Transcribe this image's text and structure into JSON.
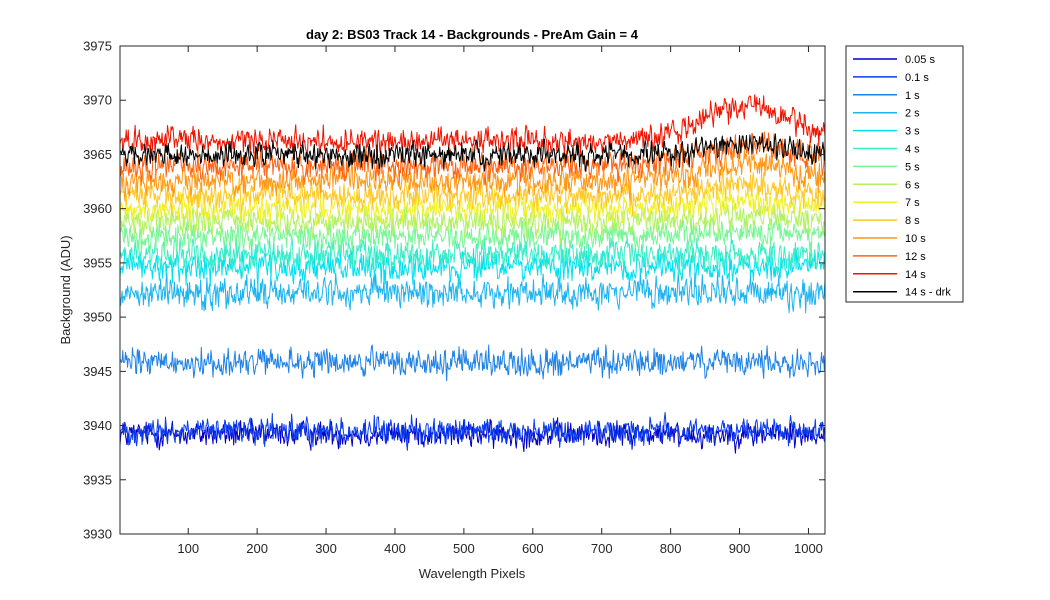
{
  "chart_data": {
    "type": "line",
    "title": "day 2: BS03  Track 14 - Backgrounds - PreAm Gain = 4",
    "xlabel": "Wavelength Pixels",
    "ylabel": "Background (ADU)",
    "xlim": [
      1,
      1024
    ],
    "ylim": [
      3930,
      3975
    ],
    "xticks": [
      100,
      200,
      300,
      400,
      500,
      600,
      700,
      800,
      900,
      1000
    ],
    "yticks": [
      3930,
      3935,
      3940,
      3945,
      3950,
      3955,
      3960,
      3965,
      3970,
      3975
    ],
    "grid": false,
    "legend_position": "outside-right",
    "series": [
      {
        "name": "0.05 s",
        "color": "#0000c8",
        "base": 3939.2,
        "noise": 1.1,
        "bump": 0
      },
      {
        "name": "0.1 s",
        "color": "#0a3cf0",
        "base": 3939.5,
        "noise": 1.1,
        "bump": 0
      },
      {
        "name": "1 s",
        "color": "#1e82e6",
        "base": 3945.8,
        "noise": 1.2,
        "bump": 0
      },
      {
        "name": "2 s",
        "color": "#1eb4f0",
        "base": 3952.3,
        "noise": 1.3,
        "bump": 0
      },
      {
        "name": "3 s",
        "color": "#00e1f0",
        "base": 3954.6,
        "noise": 1.3,
        "bump": 0
      },
      {
        "name": "4 s",
        "color": "#3cebc8",
        "base": 3955.8,
        "noise": 1.3,
        "bump": 0
      },
      {
        "name": "5 s",
        "color": "#78f596",
        "base": 3957.5,
        "noise": 1.2,
        "bump": 0.3
      },
      {
        "name": "6 s",
        "color": "#b4f064",
        "base": 3958.8,
        "noise": 1.2,
        "bump": 0.5
      },
      {
        "name": "7 s",
        "color": "#f0f028",
        "base": 3960.0,
        "noise": 1.2,
        "bump": 0.7
      },
      {
        "name": "8 s",
        "color": "#ffc828",
        "base": 3961.2,
        "noise": 1.2,
        "bump": 1.0
      },
      {
        "name": "10 s",
        "color": "#ff9614",
        "base": 3962.6,
        "noise": 1.2,
        "bump": 1.5
      },
      {
        "name": "12 s",
        "color": "#ff6414",
        "base": 3964.0,
        "noise": 1.2,
        "bump": 2.0
      },
      {
        "name": "14 s",
        "color": "#f01400",
        "base": 3966.2,
        "noise": 1.1,
        "bump": 3.5
      },
      {
        "name": "14 s - drk",
        "color": "#000000",
        "base": 3965.0,
        "noise": 1.0,
        "bump": 1.0
      }
    ]
  }
}
